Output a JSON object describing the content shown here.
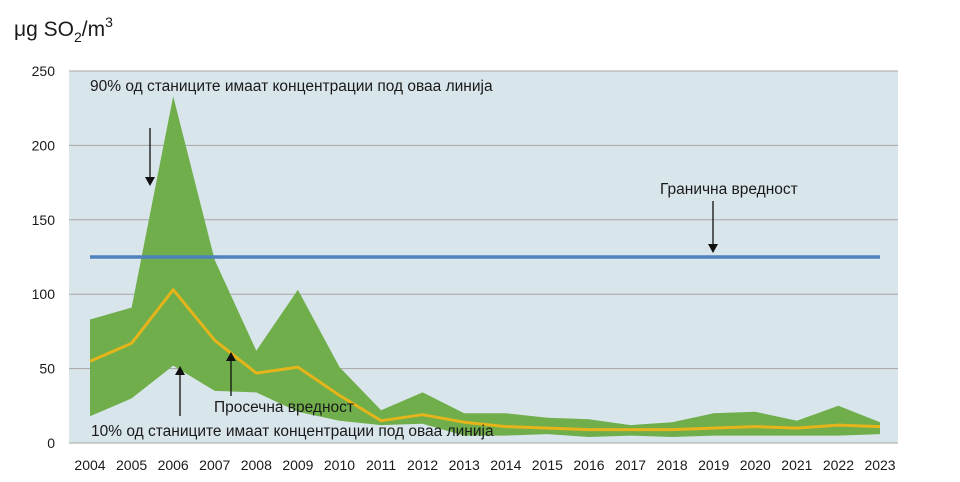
{
  "chart_data": {
    "type": "area",
    "unit_label": {
      "base": "μg SO",
      "sub": "2",
      "mid": "/m",
      "sup": "3"
    },
    "x": [
      "2004",
      "2005",
      "2006",
      "2007",
      "2008",
      "2009",
      "2010",
      "2011",
      "2012",
      "2013",
      "2014",
      "2015",
      "2016",
      "2017",
      "2018",
      "2019",
      "2020",
      "2021",
      "2022",
      "2023"
    ],
    "series": [
      {
        "role": "upper-90",
        "values": [
          83,
          91,
          233,
          123,
          62,
          103,
          51,
          22,
          34,
          20,
          20,
          17,
          16,
          12,
          14,
          20,
          21,
          15,
          25,
          14
        ]
      },
      {
        "role": "lower-10",
        "values": [
          18,
          30,
          52,
          35,
          34,
          21,
          15,
          12,
          13,
          5,
          5,
          6,
          4,
          5,
          4,
          5,
          5,
          5,
          5,
          6
        ]
      },
      {
        "role": "mean",
        "values": [
          55,
          67,
          103,
          69,
          47,
          51,
          32,
          15,
          19,
          14,
          11,
          10,
          9,
          9,
          9,
          10,
          11,
          10,
          12,
          11
        ]
      }
    ],
    "limit_value": 125,
    "ylim": [
      0,
      250
    ],
    "yticks": [
      "0",
      "50",
      "100",
      "150",
      "200",
      "250"
    ],
    "grid": true,
    "annotations": {
      "upper": "90% од станиците имаат концентрации под оваа линија",
      "lower": "10% од станиците имаат концентрации под оваа линија",
      "mean": "Просечна вредност",
      "limit": "Гранична вредност"
    },
    "colors": {
      "plot_bg": "#d8e5ea",
      "band": "#6fae4a",
      "mean": "#e5b41b",
      "limit": "#4f81bd",
      "grid": "#a6a6a6",
      "arrow": "#111111"
    }
  }
}
